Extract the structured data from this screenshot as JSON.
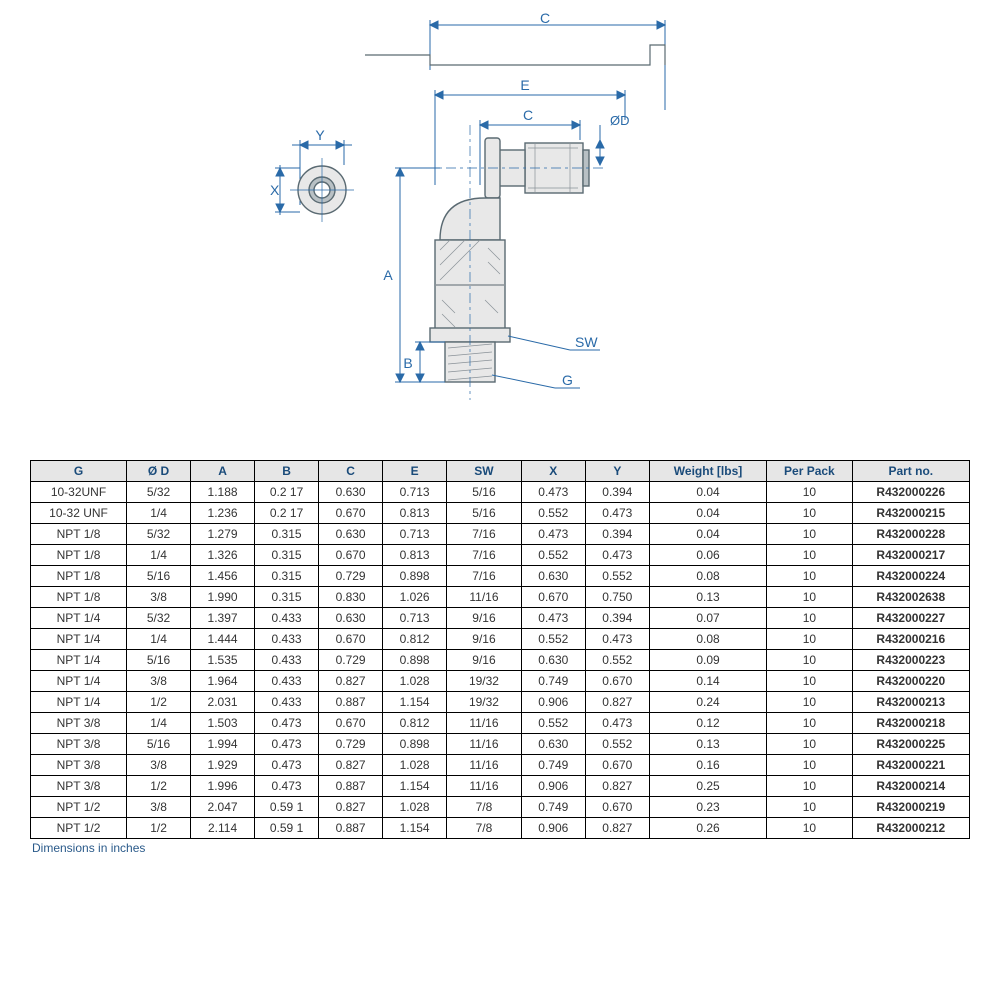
{
  "diagram": {
    "labels": {
      "c_top": "C",
      "e": "E",
      "c_inner": "C",
      "od": "ØD",
      "y": "Y",
      "x": "X",
      "a": "A",
      "sw": "SW",
      "b": "B",
      "g": "G"
    },
    "colors": {
      "line": "#2a6aa8",
      "part_outline": "#5a6a72",
      "part_fill": "#e8e8e8",
      "part_hatch": "#b8c0c4"
    }
  },
  "table": {
    "headers": [
      "G",
      "Ø D",
      "A",
      "B",
      "C",
      "E",
      "SW",
      "X",
      "Y",
      "Weight [lbs]",
      "Per Pack",
      "Part no."
    ],
    "rows": [
      [
        "10-32UNF",
        "5/32",
        "1.188",
        "0.2 17",
        "0.630",
        "0.713",
        "5/16",
        "0.473",
        "0.394",
        "0.04",
        "10",
        "R432000226"
      ],
      [
        "10-32 UNF",
        "1/4",
        "1.236",
        "0.2 17",
        "0.670",
        "0.813",
        "5/16",
        "0.552",
        "0.473",
        "0.04",
        "10",
        "R432000215"
      ],
      [
        "NPT 1/8",
        "5/32",
        "1.279",
        "0.315",
        "0.630",
        "0.713",
        "7/16",
        "0.473",
        "0.394",
        "0.04",
        "10",
        "R432000228"
      ],
      [
        "NPT 1/8",
        "1/4",
        "1.326",
        "0.315",
        "0.670",
        "0.813",
        "7/16",
        "0.552",
        "0.473",
        "0.06",
        "10",
        "R432000217"
      ],
      [
        "NPT 1/8",
        "5/16",
        "1.456",
        "0.315",
        "0.729",
        "0.898",
        "7/16",
        "0.630",
        "0.552",
        "0.08",
        "10",
        "R432000224"
      ],
      [
        "NPT 1/8",
        "3/8",
        "1.990",
        "0.315",
        "0.830",
        "1.026",
        "11/16",
        "0.670",
        "0.750",
        "0.13",
        "10",
        "R432002638"
      ],
      [
        "NPT 1/4",
        "5/32",
        "1.397",
        "0.433",
        "0.630",
        "0.713",
        "9/16",
        "0.473",
        "0.394",
        "0.07",
        "10",
        "R432000227"
      ],
      [
        "NPT 1/4",
        "1/4",
        "1.444",
        "0.433",
        "0.670",
        "0.812",
        "9/16",
        "0.552",
        "0.473",
        "0.08",
        "10",
        "R432000216"
      ],
      [
        "NPT 1/4",
        "5/16",
        "1.535",
        "0.433",
        "0.729",
        "0.898",
        "9/16",
        "0.630",
        "0.552",
        "0.09",
        "10",
        "R432000223"
      ],
      [
        "NPT 1/4",
        "3/8",
        "1.964",
        "0.433",
        "0.827",
        "1.028",
        "19/32",
        "0.749",
        "0.670",
        "0.14",
        "10",
        "R432000220"
      ],
      [
        "NPT 1/4",
        "1/2",
        "2.031",
        "0.433",
        "0.887",
        "1.154",
        "19/32",
        "0.906",
        "0.827",
        "0.24",
        "10",
        "R432000213"
      ],
      [
        "NPT 3/8",
        "1/4",
        "1.503",
        "0.473",
        "0.670",
        "0.812",
        "11/16",
        "0.552",
        "0.473",
        "0.12",
        "10",
        "R432000218"
      ],
      [
        "NPT 3/8",
        "5/16",
        "1.994",
        "0.473",
        "0.729",
        "0.898",
        "11/16",
        "0.630",
        "0.552",
        "0.13",
        "10",
        "R432000225"
      ],
      [
        "NPT 3/8",
        "3/8",
        "1.929",
        "0.473",
        "0.827",
        "1.028",
        "11/16",
        "0.749",
        "0.670",
        "0.16",
        "10",
        "R432000221"
      ],
      [
        "NPT 3/8",
        "1/2",
        "1.996",
        "0.473",
        "0.887",
        "1.154",
        "11/16",
        "0.906",
        "0.827",
        "0.25",
        "10",
        "R432000214"
      ],
      [
        "NPT 1/2",
        "3/8",
        "2.047",
        "0.59 1",
        "0.827",
        "1.028",
        "7/8",
        "0.749",
        "0.670",
        "0.23",
        "10",
        "R432000219"
      ],
      [
        "NPT 1/2",
        "1/2",
        "2.114",
        "0.59 1",
        "0.887",
        "1.154",
        "7/8",
        "0.906",
        "0.827",
        "0.26",
        "10",
        "R432000212"
      ]
    ],
    "footnote": "Dimensions in inches"
  }
}
